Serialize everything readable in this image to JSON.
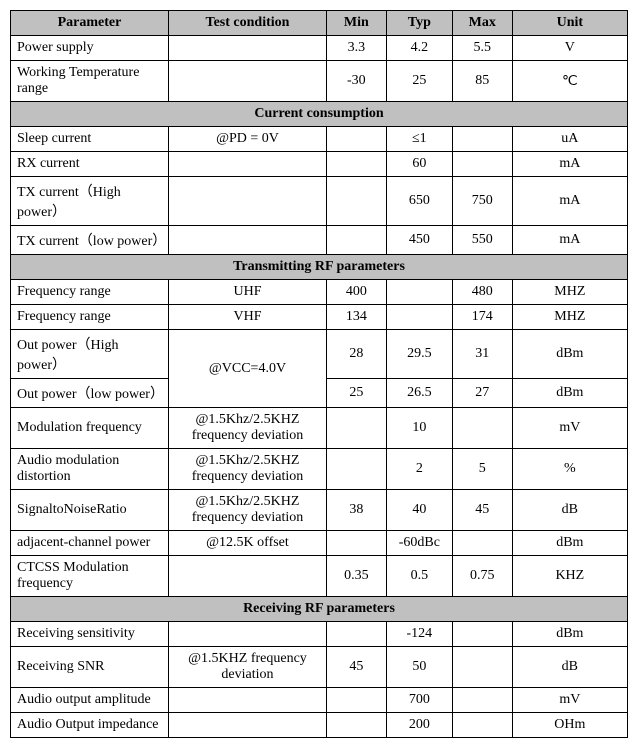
{
  "headers": {
    "parameter": "Parameter",
    "test_condition": "Test condition",
    "min": "Min",
    "typ": "Typ",
    "max": "Max",
    "unit": "Unit"
  },
  "sections": {
    "current_consumption": "Current consumption",
    "tx_params": "Transmitting RF parameters",
    "rx_params": "Receiving RF parameters"
  },
  "rows": {
    "power_supply": {
      "param": "Power supply",
      "cond": "",
      "min": "3.3",
      "typ": "4.2",
      "max": "5.5",
      "unit": "V"
    },
    "working_temp": {
      "param": "Working Temperature range",
      "cond": "",
      "min": "-30",
      "typ": "25",
      "max": "85",
      "unit": "℃"
    },
    "sleep_current": {
      "param": "Sleep current",
      "cond": "@PD    = 0V",
      "min": "",
      "typ": "≤1",
      "max": "",
      "unit": "uA"
    },
    "rx_current": {
      "param": "RX current",
      "cond": "",
      "min": "",
      "typ": "60",
      "max": "",
      "unit": "mA"
    },
    "tx_current_high": {
      "param": "TX current（High power）",
      "cond": "",
      "min": "",
      "typ": "650",
      "max": "750",
      "unit": "mA"
    },
    "tx_current_low": {
      "param": "TX current（low power）",
      "cond": "",
      "min": "",
      "typ": "450",
      "max": "550",
      "unit": "mA"
    },
    "freq_range_uhf": {
      "param": "Frequency range",
      "cond": "UHF",
      "min": "400",
      "typ": "",
      "max": "480",
      "unit": "MHZ"
    },
    "freq_range_vhf": {
      "param": "Frequency range",
      "cond": "VHF",
      "min": "134",
      "typ": "",
      "max": "174",
      "unit": "MHZ"
    },
    "out_power_high": {
      "param": "Out power（High power）",
      "min": "28",
      "typ": "29.5",
      "max": "31",
      "unit": "dBm"
    },
    "out_power_vcc": {
      "cond": "@VCC=4.0V"
    },
    "out_power_low": {
      "param": "Out power（low power）",
      "min": "25",
      "typ": "26.5",
      "max": "27",
      "unit": "dBm"
    },
    "mod_freq": {
      "param": "Modulation frequency",
      "cond": "@1.5Khz/2.5KHZ frequency deviation",
      "min": "",
      "typ": "10",
      "max": "",
      "unit": "mV"
    },
    "audio_mod_dist": {
      "param": "Audio modulation distortion",
      "cond": "@1.5Khz/2.5KHZ frequency deviation",
      "min": "",
      "typ": "2",
      "max": "5",
      "unit": "%"
    },
    "snr": {
      "param": "SignaltoNoiseRatio",
      "cond": "@1.5Khz/2.5KHZ frequency deviation",
      "min": "38",
      "typ": "40",
      "max": "45",
      "unit": "dB"
    },
    "adj_channel": {
      "param": "adjacent-channel power",
      "cond": "@12.5K offset",
      "min": "",
      "typ": "-60dBc",
      "max": "",
      "unit": "dBm"
    },
    "ctcss": {
      "param": "CTCSS Modulation frequency",
      "cond": "",
      "min": "0.35",
      "typ": "0.5",
      "max": "0.75",
      "unit": "KHZ"
    },
    "rx_sens": {
      "param": "Receiving sensitivity",
      "cond": "",
      "min": "",
      "typ": "-124",
      "max": "",
      "unit": "dBm"
    },
    "rx_snr": {
      "param": "Receiving SNR",
      "cond": "@1.5KHZ frequency deviation",
      "min": "45",
      "typ": "50",
      "max": "",
      "unit": "dB"
    },
    "audio_amp": {
      "param": "Audio output amplitude",
      "cond": "",
      "min": "",
      "typ": "700",
      "max": "",
      "unit": "mV"
    },
    "audio_imp": {
      "param": "Audio Output impedance",
      "cond": "",
      "min": "",
      "typ": "200",
      "max": "",
      "unit": "OHm"
    }
  }
}
